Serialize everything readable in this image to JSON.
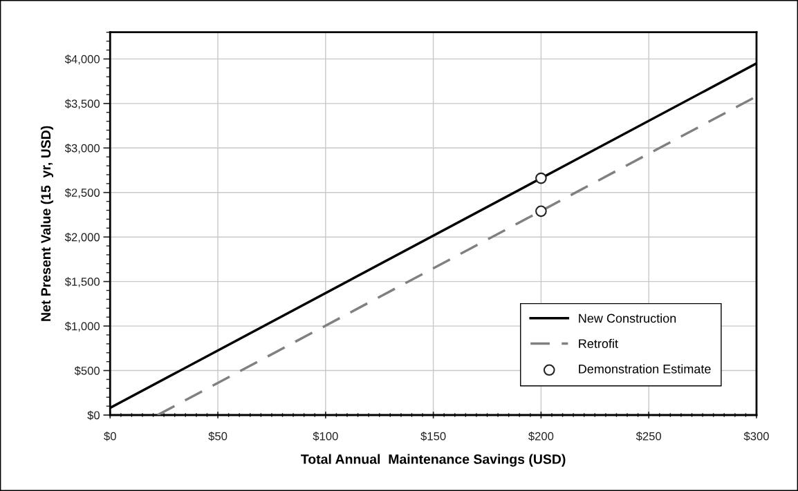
{
  "chart_data": {
    "type": "line",
    "xlabel": "Total Annual  Maintenance Savings (USD)",
    "ylabel": "Net Present Value (15  yr, USD)",
    "xlim": [
      0,
      300
    ],
    "xticks": [
      {
        "value": 0,
        "label": "$0"
      },
      {
        "value": 50,
        "label": "$50"
      },
      {
        "value": 100,
        "label": "$100"
      },
      {
        "value": 150,
        "label": "$150"
      },
      {
        "value": 200,
        "label": "$200"
      },
      {
        "value": 250,
        "label": "$250"
      },
      {
        "value": 300,
        "label": "$300"
      }
    ],
    "ylim": [
      0,
      4300
    ],
    "yticks": [
      {
        "value": 0,
        "label": "$0"
      },
      {
        "value": 500,
        "label": "$500"
      },
      {
        "value": 1000,
        "label": "$1,000"
      },
      {
        "value": 1500,
        "label": "$1,500"
      },
      {
        "value": 2000,
        "label": "$2,000"
      },
      {
        "value": 2500,
        "label": "$2,500"
      },
      {
        "value": 3000,
        "label": "$3,000"
      },
      {
        "value": 3500,
        "label": "$3,500"
      },
      {
        "value": 4000,
        "label": "$4,000"
      }
    ],
    "grid": true,
    "legend": "bottom right",
    "series": [
      {
        "name": "New Construction",
        "color": "#000000",
        "line_style": "solid",
        "x": [
          0,
          300
        ],
        "values": [
          80,
          3950
        ]
      },
      {
        "name": "Retrofit",
        "color": "#808080",
        "line_style": "dashed",
        "x": [
          22,
          300
        ],
        "values": [
          0,
          3580
        ]
      },
      {
        "name": "Demonstration Estimate",
        "type": "scatter",
        "color": "#ffffff",
        "marker": "circle",
        "x": [
          200,
          200
        ],
        "values": [
          2660,
          2290
        ]
      }
    ]
  }
}
